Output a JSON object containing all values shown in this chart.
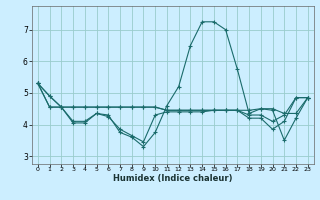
{
  "title": "",
  "xlabel": "Humidex (Indice chaleur)",
  "bg_color": "#cceeff",
  "grid_color": "#99cccc",
  "line_color": "#1a6b6b",
  "xlim": [
    -0.5,
    23.5
  ],
  "ylim": [
    2.75,
    7.75
  ],
  "xticks": [
    0,
    1,
    2,
    3,
    4,
    5,
    6,
    7,
    8,
    9,
    10,
    11,
    12,
    13,
    14,
    15,
    16,
    17,
    18,
    19,
    20,
    21,
    22,
    23
  ],
  "yticks": [
    3,
    4,
    5,
    6,
    7
  ],
  "series": [
    [
      5.3,
      4.9,
      4.55,
      4.05,
      4.05,
      4.35,
      4.3,
      3.75,
      3.6,
      3.3,
      3.75,
      4.6,
      5.2,
      6.5,
      7.25,
      7.25,
      7.0,
      5.75,
      4.35,
      4.5,
      4.45,
      3.5,
      4.2,
      4.85
    ],
    [
      5.3,
      4.9,
      4.55,
      4.1,
      4.1,
      4.35,
      4.25,
      3.85,
      3.65,
      3.45,
      4.3,
      4.4,
      4.4,
      4.4,
      4.4,
      4.45,
      4.45,
      4.45,
      4.45,
      4.5,
      4.5,
      4.35,
      4.35,
      4.85
    ],
    [
      5.3,
      4.55,
      4.55,
      4.55,
      4.55,
      4.55,
      4.55,
      4.55,
      4.55,
      4.55,
      4.55,
      4.45,
      4.45,
      4.45,
      4.45,
      4.45,
      4.45,
      4.45,
      4.3,
      4.3,
      4.1,
      4.3,
      4.85,
      4.85
    ],
    [
      5.3,
      4.55,
      4.55,
      4.55,
      4.55,
      4.55,
      4.55,
      4.55,
      4.55,
      4.55,
      4.55,
      4.45,
      4.45,
      4.45,
      4.45,
      4.45,
      4.45,
      4.45,
      4.2,
      4.2,
      3.85,
      4.1,
      4.85,
      4.85
    ]
  ]
}
